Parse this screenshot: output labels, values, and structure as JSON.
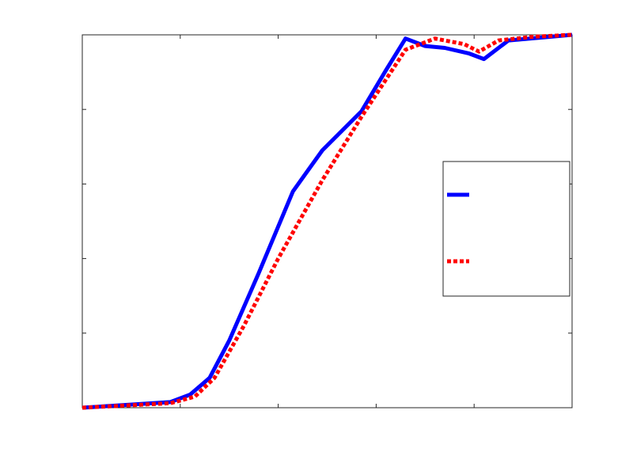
{
  "chart_data": {
    "type": "line",
    "title": "",
    "xlabel": "",
    "ylabel": "",
    "xlim": [
      0,
      1
    ],
    "ylim": [
      0,
      1
    ],
    "xticks": [
      0,
      0.2,
      0.4,
      0.6,
      0.8,
      1.0
    ],
    "yticks": [
      0,
      0.2,
      0.4,
      0.6,
      0.8,
      1.0
    ],
    "tick_labels_shown": false,
    "grid": false,
    "legend_position": "right",
    "series": [
      {
        "name": "",
        "color": "#0000ff",
        "line_style": "solid",
        "x": [
          0.0,
          0.18,
          0.22,
          0.26,
          0.3,
          0.36,
          0.43,
          0.49,
          0.57,
          0.62,
          0.66,
          0.7,
          0.74,
          0.79,
          0.82,
          0.87,
          1.0
        ],
        "y": [
          0.0,
          0.015,
          0.035,
          0.08,
          0.18,
          0.36,
          0.58,
          0.69,
          0.795,
          0.905,
          0.99,
          0.97,
          0.965,
          0.95,
          0.935,
          0.985,
          1.0
        ]
      },
      {
        "name": "",
        "color": "#ff0000",
        "line_style": "dotted",
        "x": [
          0.0,
          0.18,
          0.23,
          0.27,
          0.33,
          0.4,
          0.49,
          0.57,
          0.66,
          0.72,
          0.78,
          0.81,
          0.85,
          0.92,
          1.0
        ],
        "y": [
          0.0,
          0.012,
          0.03,
          0.08,
          0.22,
          0.4,
          0.61,
          0.78,
          0.96,
          0.99,
          0.975,
          0.955,
          0.985,
          0.995,
          1.0
        ]
      }
    ]
  }
}
